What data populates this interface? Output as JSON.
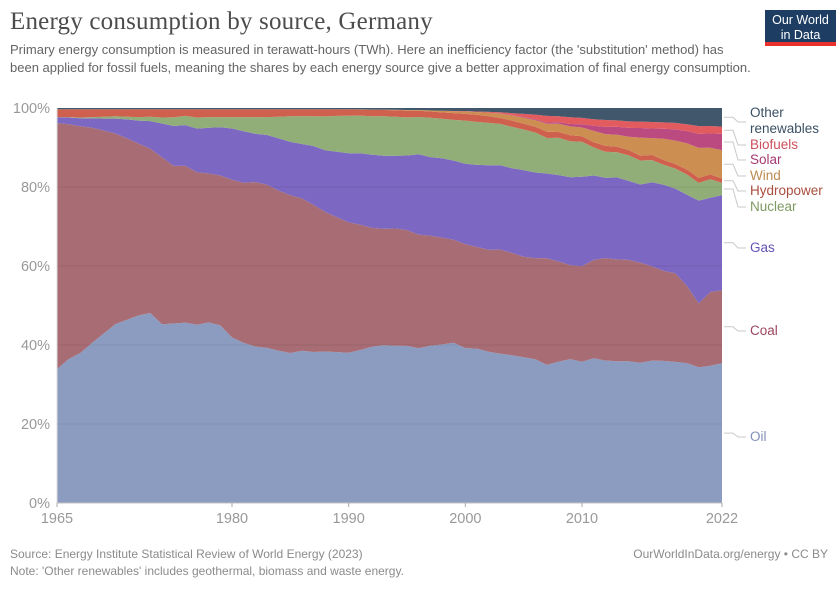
{
  "header": {
    "title": "Energy consumption by source, Germany",
    "subtitle": "Primary energy consumption is measured in terawatt-hours (TWh). Here an inefficiency factor (the 'substitution' method) has been applied for fossil fuels, meaning the shares by each energy source give a better approximation of final energy consumption."
  },
  "logo": {
    "line1": "Our World",
    "line2": "in Data",
    "bg": "#1d3d63",
    "accent": "#e8302c"
  },
  "chart_data": {
    "type": "area",
    "stacking": "percent",
    "title": "Energy consumption by source, Germany",
    "xlabel": "",
    "ylabel": "",
    "ylim": [
      0,
      100
    ],
    "grid": true,
    "legend_position": "right",
    "x": [
      1965,
      1966,
      1967,
      1968,
      1969,
      1970,
      1971,
      1972,
      1973,
      1974,
      1975,
      1976,
      1977,
      1978,
      1979,
      1980,
      1981,
      1982,
      1983,
      1984,
      1985,
      1986,
      1987,
      1988,
      1989,
      1990,
      1991,
      1992,
      1993,
      1994,
      1995,
      1996,
      1997,
      1998,
      1999,
      2000,
      2001,
      2002,
      2003,
      2004,
      2005,
      2006,
      2007,
      2008,
      2009,
      2010,
      2011,
      2012,
      2013,
      2014,
      2015,
      2016,
      2017,
      2018,
      2019,
      2020,
      2021,
      2022
    ],
    "x_ticks": [
      1965,
      1980,
      1990,
      2000,
      2010,
      2022
    ],
    "y_ticks": [
      0,
      20,
      40,
      60,
      80,
      100
    ],
    "y_tick_suffix": "%",
    "series": [
      {
        "key": "oil",
        "name": "Oil",
        "color": "#8b9cc0",
        "label_color": "#8191b8",
        "values": [
          34,
          36.5,
          38,
          40.5,
          43,
          45.5,
          46.5,
          47.5,
          48,
          45,
          45,
          45.5,
          45,
          45.5,
          45,
          42,
          40.5,
          39.5,
          39,
          38.5,
          38,
          38.5,
          38,
          38,
          38,
          38,
          38.5,
          39.5,
          40,
          40,
          40,
          39.5,
          40,
          40,
          40.5,
          39.5,
          39.5,
          38.5,
          38,
          37.5,
          37,
          37,
          35,
          36,
          36,
          35.5,
          36,
          35.5,
          35.5,
          35,
          35,
          35.5,
          35.5,
          35,
          34.5,
          33,
          33.5,
          34.5
        ]
      },
      {
        "key": "coal",
        "name": "Coal",
        "color": "#a86c74",
        "label_color": "#9d4660",
        "values": [
          62.5,
          59.5,
          57.5,
          54.5,
          51.5,
          48.5,
          46,
          43.5,
          41.5,
          42,
          39.5,
          39.5,
          38.5,
          37.5,
          38,
          40,
          40.5,
          41.5,
          41,
          40.5,
          40,
          38.5,
          37,
          35,
          34,
          33,
          31.5,
          30,
          29.5,
          29.8,
          29.5,
          29,
          28,
          27,
          26,
          26.5,
          26,
          26,
          26.5,
          26,
          25.5,
          26,
          27,
          25.5,
          23.5,
          24,
          24.5,
          25.5,
          25.5,
          25,
          25,
          23.5,
          22.5,
          22,
          19,
          15.5,
          18,
          18
        ]
      },
      {
        "key": "gas",
        "name": "Gas",
        "color": "#7c68c2",
        "label_color": "#6155b5",
        "values": [
          1.5,
          1.7,
          2,
          2.4,
          3,
          3.8,
          4.8,
          5.8,
          7,
          8.5,
          10,
          10.3,
          11,
          11.5,
          12.2,
          13,
          13,
          12.2,
          12.5,
          13.2,
          13.5,
          13.8,
          14.8,
          15.5,
          16.5,
          17.5,
          18,
          18.5,
          18.5,
          18.5,
          19,
          20.5,
          20,
          20,
          20,
          20.5,
          21,
          21.5,
          21.5,
          21.5,
          22,
          22,
          21.5,
          22,
          22,
          22.5,
          21,
          20,
          20.5,
          19.5,
          19.5,
          21,
          21.5,
          21,
          22.5,
          25,
          23,
          23.5
        ]
      },
      {
        "key": "nuclear",
        "name": "Nuclear",
        "color": "#91ae78",
        "label_color": "#7e9a62",
        "values": [
          0,
          0.1,
          0.2,
          0.3,
          0.5,
          0.6,
          0.7,
          0.9,
          1.1,
          1.5,
          2.2,
          2.3,
          2.8,
          2.7,
          2.6,
          2.9,
          3.6,
          4.2,
          4.5,
          5.5,
          6.5,
          7,
          7.5,
          8.5,
          9,
          9.5,
          9.5,
          9.7,
          10,
          9.9,
          9.7,
          9.5,
          10,
          10,
          10.3,
          11,
          11,
          10.8,
          10.5,
          10.5,
          10.3,
          10.3,
          9,
          9.5,
          9,
          8.8,
          7,
          6.5,
          6.3,
          6.3,
          6,
          5.5,
          5,
          5,
          5,
          4.3,
          4.5,
          3
        ]
      },
      {
        "key": "hydropower",
        "name": "Hydropower",
        "color": "#d0604e",
        "label_color": "#aa4d3e",
        "values": [
          2,
          2,
          2.1,
          2,
          1.9,
          1.8,
          1.9,
          2,
          1.9,
          2.1,
          2,
          1.7,
          2.1,
          2,
          2,
          2,
          2,
          2,
          2,
          1.9,
          1.8,
          1.8,
          1.8,
          1.8,
          1.7,
          1.6,
          1.5,
          1.6,
          1.6,
          1.7,
          1.7,
          1.6,
          1.6,
          1.6,
          1.7,
          1.7,
          1.8,
          1.7,
          1.5,
          1.6,
          1.5,
          1.5,
          1.6,
          1.5,
          1.5,
          1.4,
          1.3,
          1.5,
          1.4,
          1.3,
          1.2,
          1.3,
          1.2,
          1.1,
          1.2,
          1.2,
          1.2,
          1.1
        ]
      },
      {
        "key": "wind",
        "name": "Wind",
        "color": "#cd8e52",
        "label_color": "#bd8a50",
        "values": [
          0,
          0,
          0,
          0,
          0,
          0,
          0,
          0,
          0,
          0,
          0,
          0,
          0,
          0,
          0,
          0,
          0,
          0,
          0,
          0,
          0,
          0,
          0,
          0,
          0,
          0.05,
          0.05,
          0.1,
          0.1,
          0.1,
          0.2,
          0.2,
          0.3,
          0.4,
          0.5,
          0.6,
          0.7,
          0.9,
          1.1,
          1.3,
          1.5,
          1.7,
          2,
          2.1,
          2.2,
          2.2,
          2.8,
          2.9,
          3,
          3.3,
          4.5,
          4.2,
          5.3,
          5.8,
          6.5,
          7.3,
          6.5,
          7
        ]
      },
      {
        "key": "solar",
        "name": "Solar",
        "color": "#bb4a80",
        "label_color": "#a53a73",
        "values": [
          0,
          0,
          0,
          0,
          0,
          0,
          0,
          0,
          0,
          0,
          0,
          0,
          0,
          0,
          0,
          0,
          0,
          0,
          0,
          0,
          0,
          0,
          0,
          0,
          0,
          0,
          0,
          0,
          0,
          0,
          0,
          0,
          0,
          0,
          0,
          0,
          0,
          0,
          0.05,
          0.1,
          0.15,
          0.2,
          0.3,
          0.4,
          0.6,
          0.8,
          1.3,
          1.8,
          2,
          2.2,
          2.4,
          2.4,
          2.5,
          2.8,
          3,
          3.4,
          3.5,
          4
        ]
      },
      {
        "key": "biofuels",
        "name": "Biofuels",
        "color": "#e25b5f",
        "label_color": "#ce4f5c",
        "values": [
          0,
          0,
          0,
          0,
          0,
          0,
          0,
          0,
          0,
          0,
          0,
          0,
          0,
          0,
          0,
          0,
          0,
          0,
          0,
          0,
          0,
          0,
          0,
          0,
          0,
          0,
          0,
          0,
          0,
          0,
          0,
          0,
          0,
          0,
          0.05,
          0.1,
          0.15,
          0.2,
          0.3,
          0.5,
          0.8,
          1.2,
          1.7,
          1.5,
          1.7,
          1.6,
          1.6,
          1.7,
          1.6,
          1.6,
          1.6,
          1.6,
          1.6,
          1.6,
          1.7,
          1.9,
          1.8,
          1.8
        ]
      },
      {
        "key": "other_renewables",
        "name": "Other renewables",
        "color": "#41586c",
        "label_color": "#3b5064",
        "values": [
          0.3,
          0.3,
          0.3,
          0.3,
          0.3,
          0.3,
          0.3,
          0.3,
          0.3,
          0.3,
          0.3,
          0.3,
          0.3,
          0.3,
          0.3,
          0.3,
          0.3,
          0.3,
          0.3,
          0.3,
          0.3,
          0.3,
          0.3,
          0.3,
          0.3,
          0.3,
          0.35,
          0.4,
          0.4,
          0.45,
          0.5,
          0.5,
          0.6,
          0.7,
          0.75,
          0.8,
          0.9,
          1,
          1.1,
          1.3,
          1.5,
          1.7,
          2,
          2.1,
          2.3,
          2.5,
          2.8,
          3,
          3.1,
          3.3,
          3.4,
          3.5,
          3.6,
          3.7,
          4,
          4.4,
          4.4,
          4.6
        ]
      }
    ]
  },
  "legend": {
    "items": [
      {
        "key": "other_renewables",
        "lines": [
          "Other",
          "renewables"
        ],
        "color": "#3b5064"
      },
      {
        "key": "biofuels",
        "lines": [
          "Biofuels"
        ],
        "color": "#ce4f5c"
      },
      {
        "key": "solar",
        "lines": [
          "Solar"
        ],
        "color": "#a53a73"
      },
      {
        "key": "wind",
        "lines": [
          "Wind"
        ],
        "color": "#bd8a50"
      },
      {
        "key": "hydropower",
        "lines": [
          "Hydropower"
        ],
        "color": "#aa4d3e"
      },
      {
        "key": "nuclear",
        "lines": [
          "Nuclear"
        ],
        "color": "#7e9a62"
      },
      {
        "key": "gas",
        "lines": [
          "Gas"
        ],
        "color": "#6155b5"
      },
      {
        "key": "coal",
        "lines": [
          "Coal"
        ],
        "color": "#9d4660"
      },
      {
        "key": "oil",
        "lines": [
          "Oil"
        ],
        "color": "#8191b8"
      }
    ]
  },
  "footer": {
    "source": "Source: Energy Institute Statistical Review of World Energy (2023)",
    "note": "Note: 'Other renewables' includes geothermal, biomass and waste energy.",
    "right": "OurWorldInData.org/energy • CC BY"
  }
}
